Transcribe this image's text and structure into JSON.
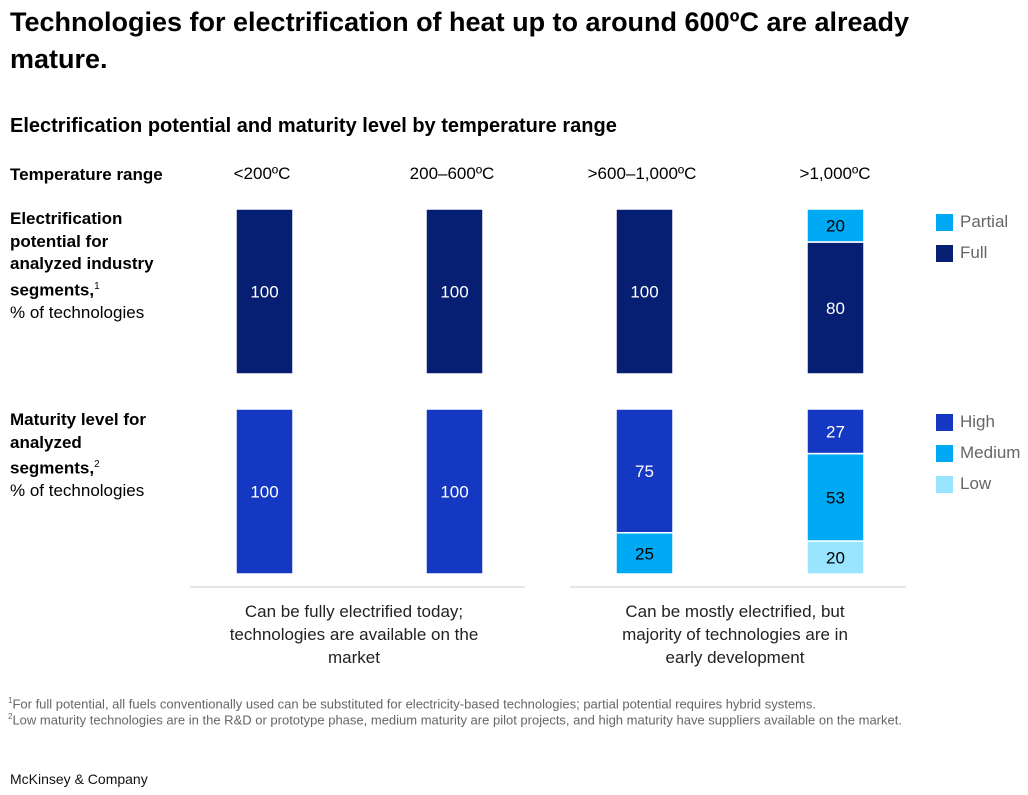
{
  "title": "Technologies for electrification of heat up to around 600ºC are already mature.",
  "subtitle": "Electrification potential and maturity level by temperature range",
  "row_header": "Temperature range",
  "row1": {
    "label_bold": "Electrification potential for analyzed industry segments,",
    "sup": "1",
    "label_normal": "% of technologies"
  },
  "row2": {
    "label_bold": "Maturity level for analyzed segments,",
    "sup": "2",
    "label_normal": "% of technologies"
  },
  "chart_data": [
    {
      "type": "bar",
      "stacked": true,
      "categories": [
        "<200ºC",
        "200–600ºC",
        ">600–1,000ºC",
        ">1,000ºC"
      ],
      "series": [
        {
          "name": "Full",
          "values": [
            100,
            100,
            100,
            80
          ],
          "color": "#071f73"
        },
        {
          "name": "Partial",
          "values": [
            0,
            0,
            0,
            20
          ],
          "color": "#00a9f4"
        }
      ]
    },
    {
      "type": "bar",
      "stacked": true,
      "categories": [
        "<200ºC",
        "200–600ºC",
        ">600–1,000ºC",
        ">1,000ºC"
      ],
      "series": [
        {
          "name": "Low",
          "values": [
            0,
            0,
            0,
            20
          ],
          "color": "#99e4ff"
        },
        {
          "name": "Medium",
          "values": [
            0,
            0,
            25,
            53
          ],
          "color": "#00a9f4"
        },
        {
          "name": "High",
          "values": [
            100,
            100,
            75,
            27
          ],
          "color": "#1538c2"
        }
      ]
    }
  ],
  "legend1": [
    {
      "name": "Partial",
      "color": "#00a9f4"
    },
    {
      "name": "Full",
      "color": "#071f73"
    }
  ],
  "legend2": [
    {
      "name": "High",
      "color": "#1538c2"
    },
    {
      "name": "Medium",
      "color": "#00a9f4"
    },
    {
      "name": "Low",
      "color": "#99e4ff"
    }
  ],
  "notes": [
    "Can be fully electrified today; technologies are available on the market",
    "Can be mostly electrified, but majority of technologies are in early development"
  ],
  "footnotes": [
    {
      "sup": "1",
      "text": "For full potential, all fuels conventionally used can be substituted for electricity-based technologies; partial potential requires hybrid systems."
    },
    {
      "sup": "2",
      "text": "Low maturity technologies are in the R&D or prototype phase, medium maturity are pilot projects, and high maturity have suppliers available on the market."
    }
  ],
  "brand": "McKinsey & Company"
}
